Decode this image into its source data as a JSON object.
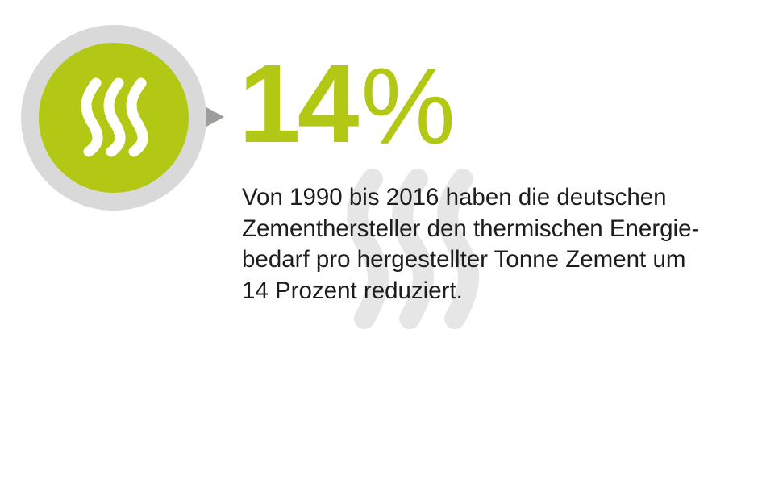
{
  "stat": {
    "number": "14",
    "unit": "%"
  },
  "description": {
    "lines": [
      "Von 1990 bis 2016 haben die deutschen",
      "Zementhersteller den thermischen Energie-",
      "bedarf pro hergestellter Tonne Zement um",
      "14 Prozent reduziert."
    ]
  },
  "icons": {
    "badge": "heat-waves-icon",
    "background": "heat-waves-watermark-icon"
  },
  "colors": {
    "accent": "#b3c814",
    "ring": "#d9d9d9",
    "pointer": "#9d9d9c",
    "watermark": "#e6e6e6",
    "text": "#1d1d1b",
    "wave_icon": "#ffffff"
  }
}
